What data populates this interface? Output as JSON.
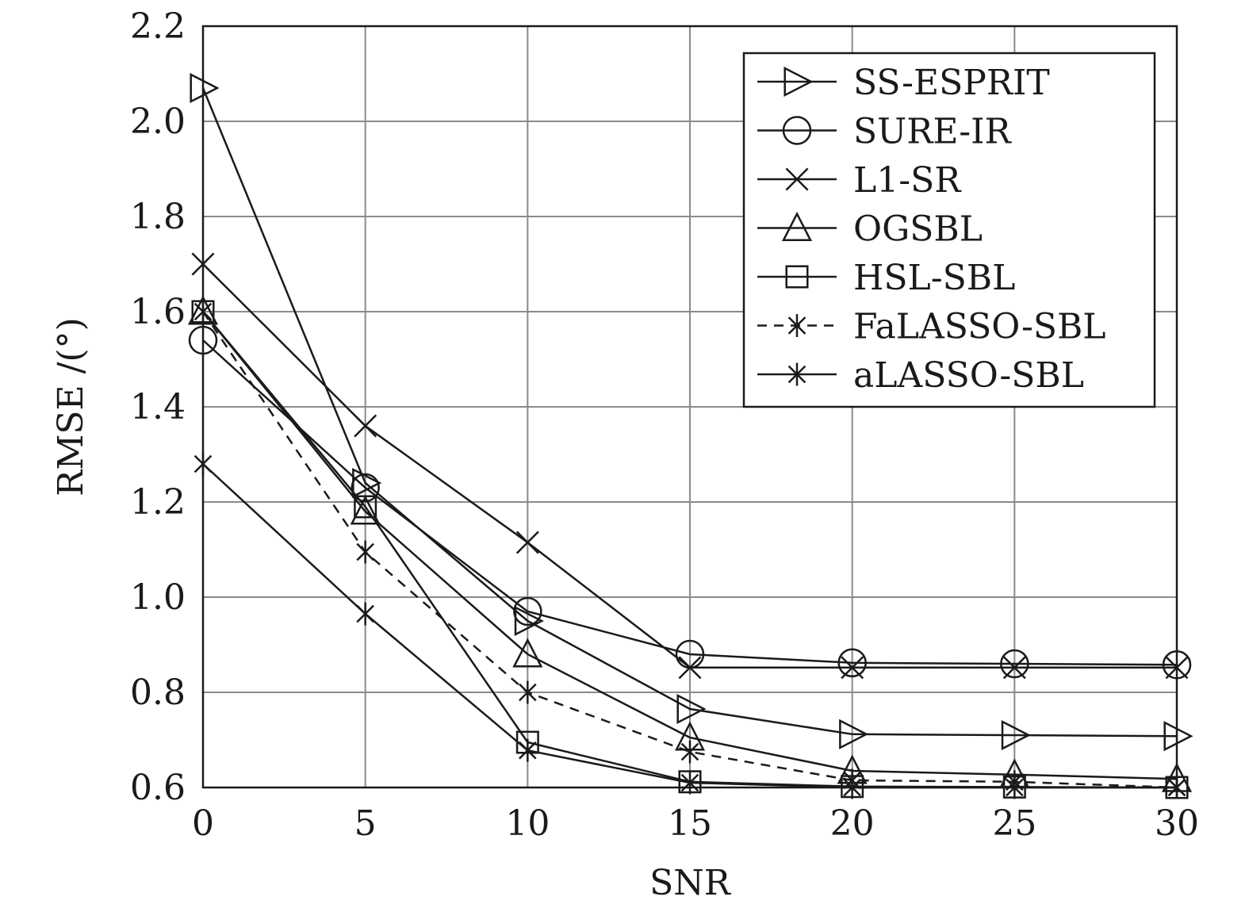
{
  "chart_data": {
    "type": "line",
    "xlabel": "SNR",
    "ylabel": "RMSE /(°)",
    "xlim": [
      0,
      30
    ],
    "ylim": [
      0.6,
      2.2
    ],
    "grid": true,
    "legend_position": "top-right",
    "xticks": [
      0,
      5,
      10,
      15,
      20,
      25,
      30
    ],
    "yticks": [
      "0.6",
      "0.8",
      "1.0",
      "1.2",
      "1.4",
      "1.6",
      "1.8",
      "2.0",
      "2.2"
    ],
    "x": [
      0,
      5,
      10,
      15,
      20,
      25,
      30
    ],
    "series": [
      {
        "name": "SS-ESPRIT",
        "marker": "triangle-right",
        "dash": "solid",
        "values": [
          2.07,
          1.24,
          0.95,
          0.765,
          0.712,
          0.71,
          0.708
        ]
      },
      {
        "name": "SURE-IR",
        "marker": "circle",
        "dash": "solid",
        "values": [
          1.54,
          1.23,
          0.97,
          0.88,
          0.862,
          0.86,
          0.858
        ]
      },
      {
        "name": "L1-SR",
        "marker": "x",
        "dash": "solid",
        "values": [
          1.7,
          1.36,
          1.115,
          0.852,
          0.852,
          0.852,
          0.852
        ]
      },
      {
        "name": "OGSBL",
        "marker": "triangle-up",
        "dash": "solid",
        "values": [
          1.6,
          1.18,
          0.88,
          0.705,
          0.635,
          0.627,
          0.618
        ]
      },
      {
        "name": "HSL-SBL",
        "marker": "square",
        "dash": "solid",
        "values": [
          1.6,
          1.19,
          0.695,
          0.612,
          0.602,
          0.601,
          0.6
        ]
      },
      {
        "name": "FaLASSO-SBL",
        "marker": "asterisk",
        "dash": "dashed",
        "values": [
          1.6,
          1.095,
          0.8,
          0.675,
          0.615,
          0.612,
          0.6
        ]
      },
      {
        "name": "aLASSO-SBL",
        "marker": "asterisk",
        "dash": "solid",
        "values": [
          1.28,
          0.965,
          0.678,
          0.61,
          0.6,
          0.6,
          0.6
        ]
      }
    ]
  }
}
